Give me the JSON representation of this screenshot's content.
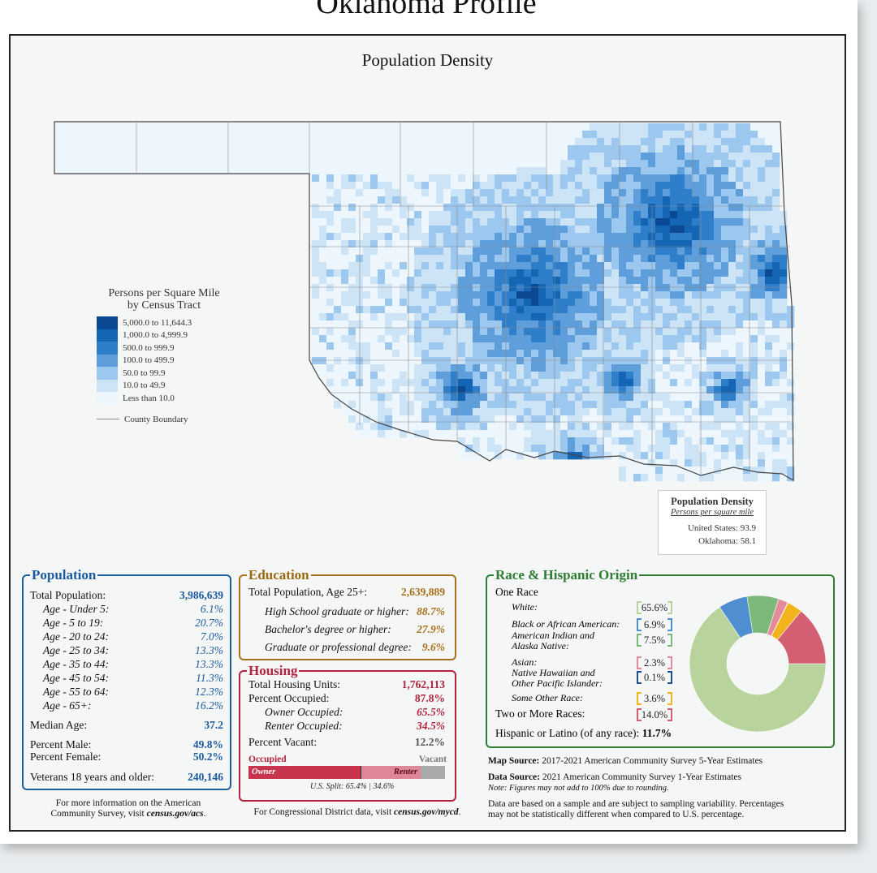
{
  "title": "Oklahoma Profile",
  "map": {
    "title": "Population Density",
    "legend_title": [
      "Persons per Square Mile",
      "by Census Tract"
    ],
    "legend": [
      {
        "label": "5,000.0 to 11,644.3",
        "color": "#0b4a93"
      },
      {
        "label": "1,000.0 to 4,999.9",
        "color": "#1565b5"
      },
      {
        "label": "500.0 to 999.9",
        "color": "#2f7ec9"
      },
      {
        "label": "100.0 to 499.9",
        "color": "#5d9edb"
      },
      {
        "label": "50.0 to 99.9",
        "color": "#9cc7ee"
      },
      {
        "label": "10.0 to 49.9",
        "color": "#cde4f7"
      },
      {
        "label": "Less than 10.0",
        "color": "#eef6fd"
      }
    ],
    "county_boundary_label": "County Boundary"
  },
  "density_box": {
    "title": "Population Density",
    "subtitle": "Persons per square mile",
    "us_label": "United States:",
    "us_value": "93.9",
    "ok_label": "Oklahoma:",
    "ok_value": "58.1"
  },
  "population": {
    "heading": "Population",
    "rows": [
      {
        "label": "Total Population:",
        "value": "3,986,639"
      },
      {
        "label": "Age - Under 5:",
        "value": "6.1%"
      },
      {
        "label": "Age - 5 to 19:",
        "value": "20.7%"
      },
      {
        "label": "Age - 20 to 24:",
        "value": "7.0%"
      },
      {
        "label": "Age - 25 to 34:",
        "value": "13.3%"
      },
      {
        "label": "Age - 35 to 44:",
        "value": "13.3%"
      },
      {
        "label": "Age - 45 to 54:",
        "value": "11.3%"
      },
      {
        "label": "Age - 55 to 64:",
        "value": "12.3%"
      },
      {
        "label": "Age - 65+:",
        "value": "16.2%"
      },
      {
        "label": "Median Age:",
        "value": "37.2"
      },
      {
        "label": "Percent Male:",
        "value": "49.8%"
      },
      {
        "label": "Percent Female:",
        "value": "50.2%"
      },
      {
        "label": "Veterans 18 years and older:",
        "value": "240,146"
      }
    ]
  },
  "education": {
    "heading": "Education",
    "rows": [
      {
        "label": "Total Population, Age 25+:",
        "value": "2,639,889"
      },
      {
        "label": "High School  graduate or higher:",
        "value": "88.7%"
      },
      {
        "label": "Bachelor's degree or higher:",
        "value": "27.9%"
      },
      {
        "label": "Graduate or professional degree:",
        "value": "9.6%"
      }
    ]
  },
  "housing": {
    "heading": "Housing",
    "rows": [
      {
        "label": "Total Housing Units:",
        "value": "1,762,113"
      },
      {
        "label": "Percent Occupied:",
        "value": "87.8%"
      },
      {
        "label": "Owner Occupied:",
        "value": "65.5%"
      },
      {
        "label": "Renter Occupied:",
        "value": "34.5%"
      },
      {
        "label": "Percent Vacant:",
        "value": "12.2%"
      }
    ],
    "bar": {
      "occupied_label": "Occupied",
      "vacant_label": "Vacant",
      "owner_label": "Owner",
      "renter_label": "Renter",
      "owner_share": 0.575,
      "renter_share": 0.303,
      "vacant_share": 0.122,
      "us_split": "U.S. Split: 65.4%",
      "us_split2": "34.6%"
    }
  },
  "race": {
    "heading": "Race & Hispanic Origin",
    "one_race": "One Race",
    "items": [
      {
        "label": "White:",
        "value": "65.6%",
        "color": "#b8d39c"
      },
      {
        "label": "Black or African American:",
        "value": "6.9%",
        "color": "#4f8fcf"
      },
      {
        "label": "American Indian and\nAlaska Native:",
        "value": "7.5%",
        "color": "#7cb87a"
      },
      {
        "label": "Asian:",
        "value": "2.3%",
        "color": "#e48b9b"
      },
      {
        "label": "Native Hawaiian and\nOther Pacific Islander:",
        "value": "0.1%",
        "color": "#1e4f8f"
      },
      {
        "label": "Some Other Race:",
        "value": "3.6%",
        "color": "#f2b31d"
      },
      {
        "label": "Two or More Races:",
        "value": "14.0%",
        "color": "#d45f72"
      }
    ],
    "hispanic_label": "Hispanic or Latino (of any race):",
    "hispanic_value": "11.7%"
  },
  "chart_data": {
    "type": "pie",
    "categories": [
      "White",
      "Black or African American",
      "American Indian and Alaska Native",
      "Asian",
      "Native Hawaiian and Other Pacific Islander",
      "Some Other Race",
      "Two or More Races"
    ],
    "values": [
      65.6,
      6.9,
      7.5,
      2.3,
      0.1,
      3.6,
      14.0
    ],
    "colors": [
      "#b8d39c",
      "#4f8fcf",
      "#7cb87a",
      "#e48b9b",
      "#1e4f8f",
      "#f2b31d",
      "#d45f72"
    ]
  },
  "sources": {
    "map_label": "Map Source:",
    "map_text": "2017-2021 American Community Survey 5-Year Estimates",
    "data_label": "Data Source:",
    "data_text": "2021 American Community Survey 1-Year Estimates",
    "note": "Note: Figures may not add to 100% due to rounding.",
    "disclaimer1": "Data are based on a sample and are subject to sampling variability. Percentages",
    "disclaimer2": "may not be statistically different when compared to U.S. percentage."
  },
  "footer": {
    "acs1": "For more information on the American",
    "acs2a": "Community Survey, visit ",
    "acs2b": "census.gov/acs",
    "acs2c": ".",
    "cd_a": "For Congressional District data, visit ",
    "cd_b": "census.gov/mycd",
    "cd_c": "."
  }
}
